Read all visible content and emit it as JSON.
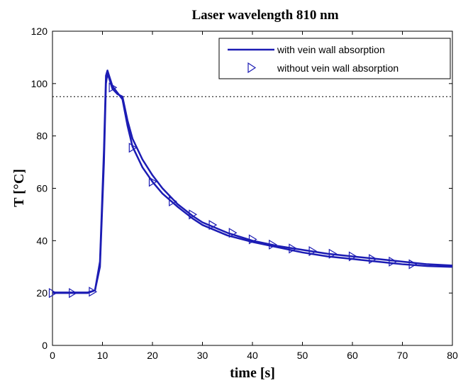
{
  "chart_data": {
    "type": "line",
    "title": "Laser wavelength 810 nm",
    "xlabel": "time [s]",
    "ylabel": "T [°C]",
    "xlim": [
      0,
      80
    ],
    "ylim": [
      0,
      120
    ],
    "x_ticks": [
      0,
      10,
      20,
      30,
      40,
      50,
      60,
      70,
      80
    ],
    "y_ticks": [
      0,
      20,
      40,
      60,
      80,
      100,
      120
    ],
    "grid": false,
    "legend_position": "top-right",
    "threshold_line": {
      "y": 95,
      "style": "dotted"
    },
    "series": [
      {
        "name": "with vein wall absorption",
        "style": "line",
        "color": "#1c1cb4",
        "x": [
          0,
          7,
          8.5,
          9.5,
          10.3,
          10.7,
          11,
          11.5,
          12,
          13,
          14,
          15,
          16,
          18,
          20,
          22,
          25,
          28,
          30,
          35,
          40,
          45,
          50,
          55,
          60,
          65,
          70,
          75,
          80
        ],
        "y": [
          20.2,
          20.2,
          21,
          30,
          70,
          100,
          104,
          101,
          98,
          96,
          95,
          86,
          79,
          71,
          65,
          60,
          54,
          49.5,
          47,
          43,
          40,
          38,
          36.5,
          35,
          34,
          33,
          32,
          31,
          30.5
        ]
      },
      {
        "name": "without vein wall absorption",
        "style": "line-triangle",
        "color": "#1c1cb4",
        "x": [
          0,
          7,
          8.5,
          9.5,
          10.3,
          10.7,
          11,
          11.5,
          12,
          13,
          14,
          15,
          16,
          18,
          20,
          22,
          25,
          28,
          30,
          35,
          40,
          45,
          50,
          55,
          60,
          65,
          70,
          75,
          80
        ],
        "y": [
          20,
          20,
          21,
          32,
          75,
          103,
          105,
          102,
          99,
          96.5,
          94,
          84,
          76,
          68,
          62.5,
          58,
          53,
          48.5,
          46,
          42,
          39.5,
          37.5,
          35.5,
          34,
          33,
          32,
          31,
          30.3,
          30
        ],
        "markers": {
          "x": [
            0,
            4,
            8,
            12,
            16,
            20,
            24,
            28,
            32,
            36,
            40,
            44,
            48,
            52,
            56,
            60,
            64,
            68,
            72
          ],
          "y": [
            20,
            20,
            20.5,
            98.5,
            75.5,
            62.5,
            55,
            50,
            46,
            43,
            40.5,
            38.5,
            37,
            36,
            35,
            34,
            33,
            32,
            31
          ]
        }
      }
    ]
  }
}
